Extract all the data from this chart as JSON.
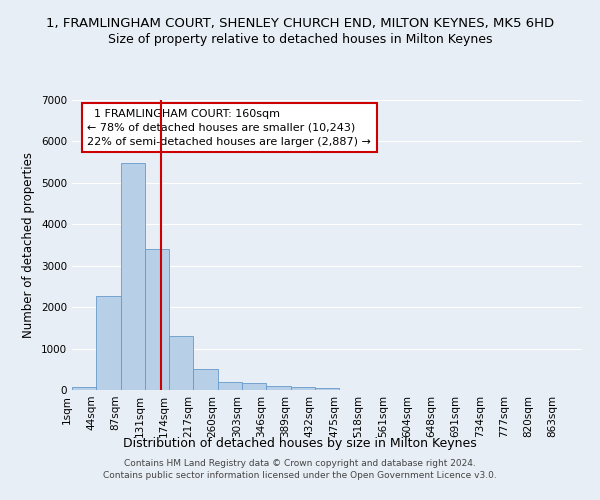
{
  "title": "1, FRAMLINGHAM COURT, SHENLEY CHURCH END, MILTON KEYNES, MK5 6HD",
  "subtitle": "Size of property relative to detached houses in Milton Keynes",
  "xlabel": "Distribution of detached houses by size in Milton Keynes",
  "ylabel": "Number of detached properties",
  "footer_line1": "Contains HM Land Registry data © Crown copyright and database right 2024.",
  "footer_line2": "Contains public sector information licensed under the Open Government Licence v3.0.",
  "bin_labels": [
    "1sqm",
    "44sqm",
    "87sqm",
    "131sqm",
    "174sqm",
    "217sqm",
    "260sqm",
    "303sqm",
    "346sqm",
    "389sqm",
    "432sqm",
    "475sqm",
    "518sqm",
    "561sqm",
    "604sqm",
    "648sqm",
    "691sqm",
    "734sqm",
    "777sqm",
    "820sqm",
    "863sqm"
  ],
  "bar_values": [
    75,
    2280,
    5480,
    3410,
    1300,
    500,
    200,
    170,
    100,
    70,
    55,
    0,
    0,
    0,
    0,
    0,
    0,
    0,
    0,
    0,
    0
  ],
  "bar_color": "#b8cfe8",
  "bar_edge_color": "#6699cc",
  "vline_color": "#cc0000",
  "annotation_text": "  1 FRAMLINGHAM COURT: 160sqm\n← 78% of detached houses are smaller (10,243)\n22% of semi-detached houses are larger (2,887) →",
  "ylim": [
    0,
    7000
  ],
  "yticks": [
    0,
    1000,
    2000,
    3000,
    4000,
    5000,
    6000,
    7000
  ],
  "background_color": "#e8eef5",
  "grid_color": "#ffffff",
  "title_fontsize": 9.5,
  "subtitle_fontsize": 9,
  "ylabel_fontsize": 8.5,
  "xlabel_fontsize": 9,
  "tick_fontsize": 7.5,
  "footer_fontsize": 6.5
}
